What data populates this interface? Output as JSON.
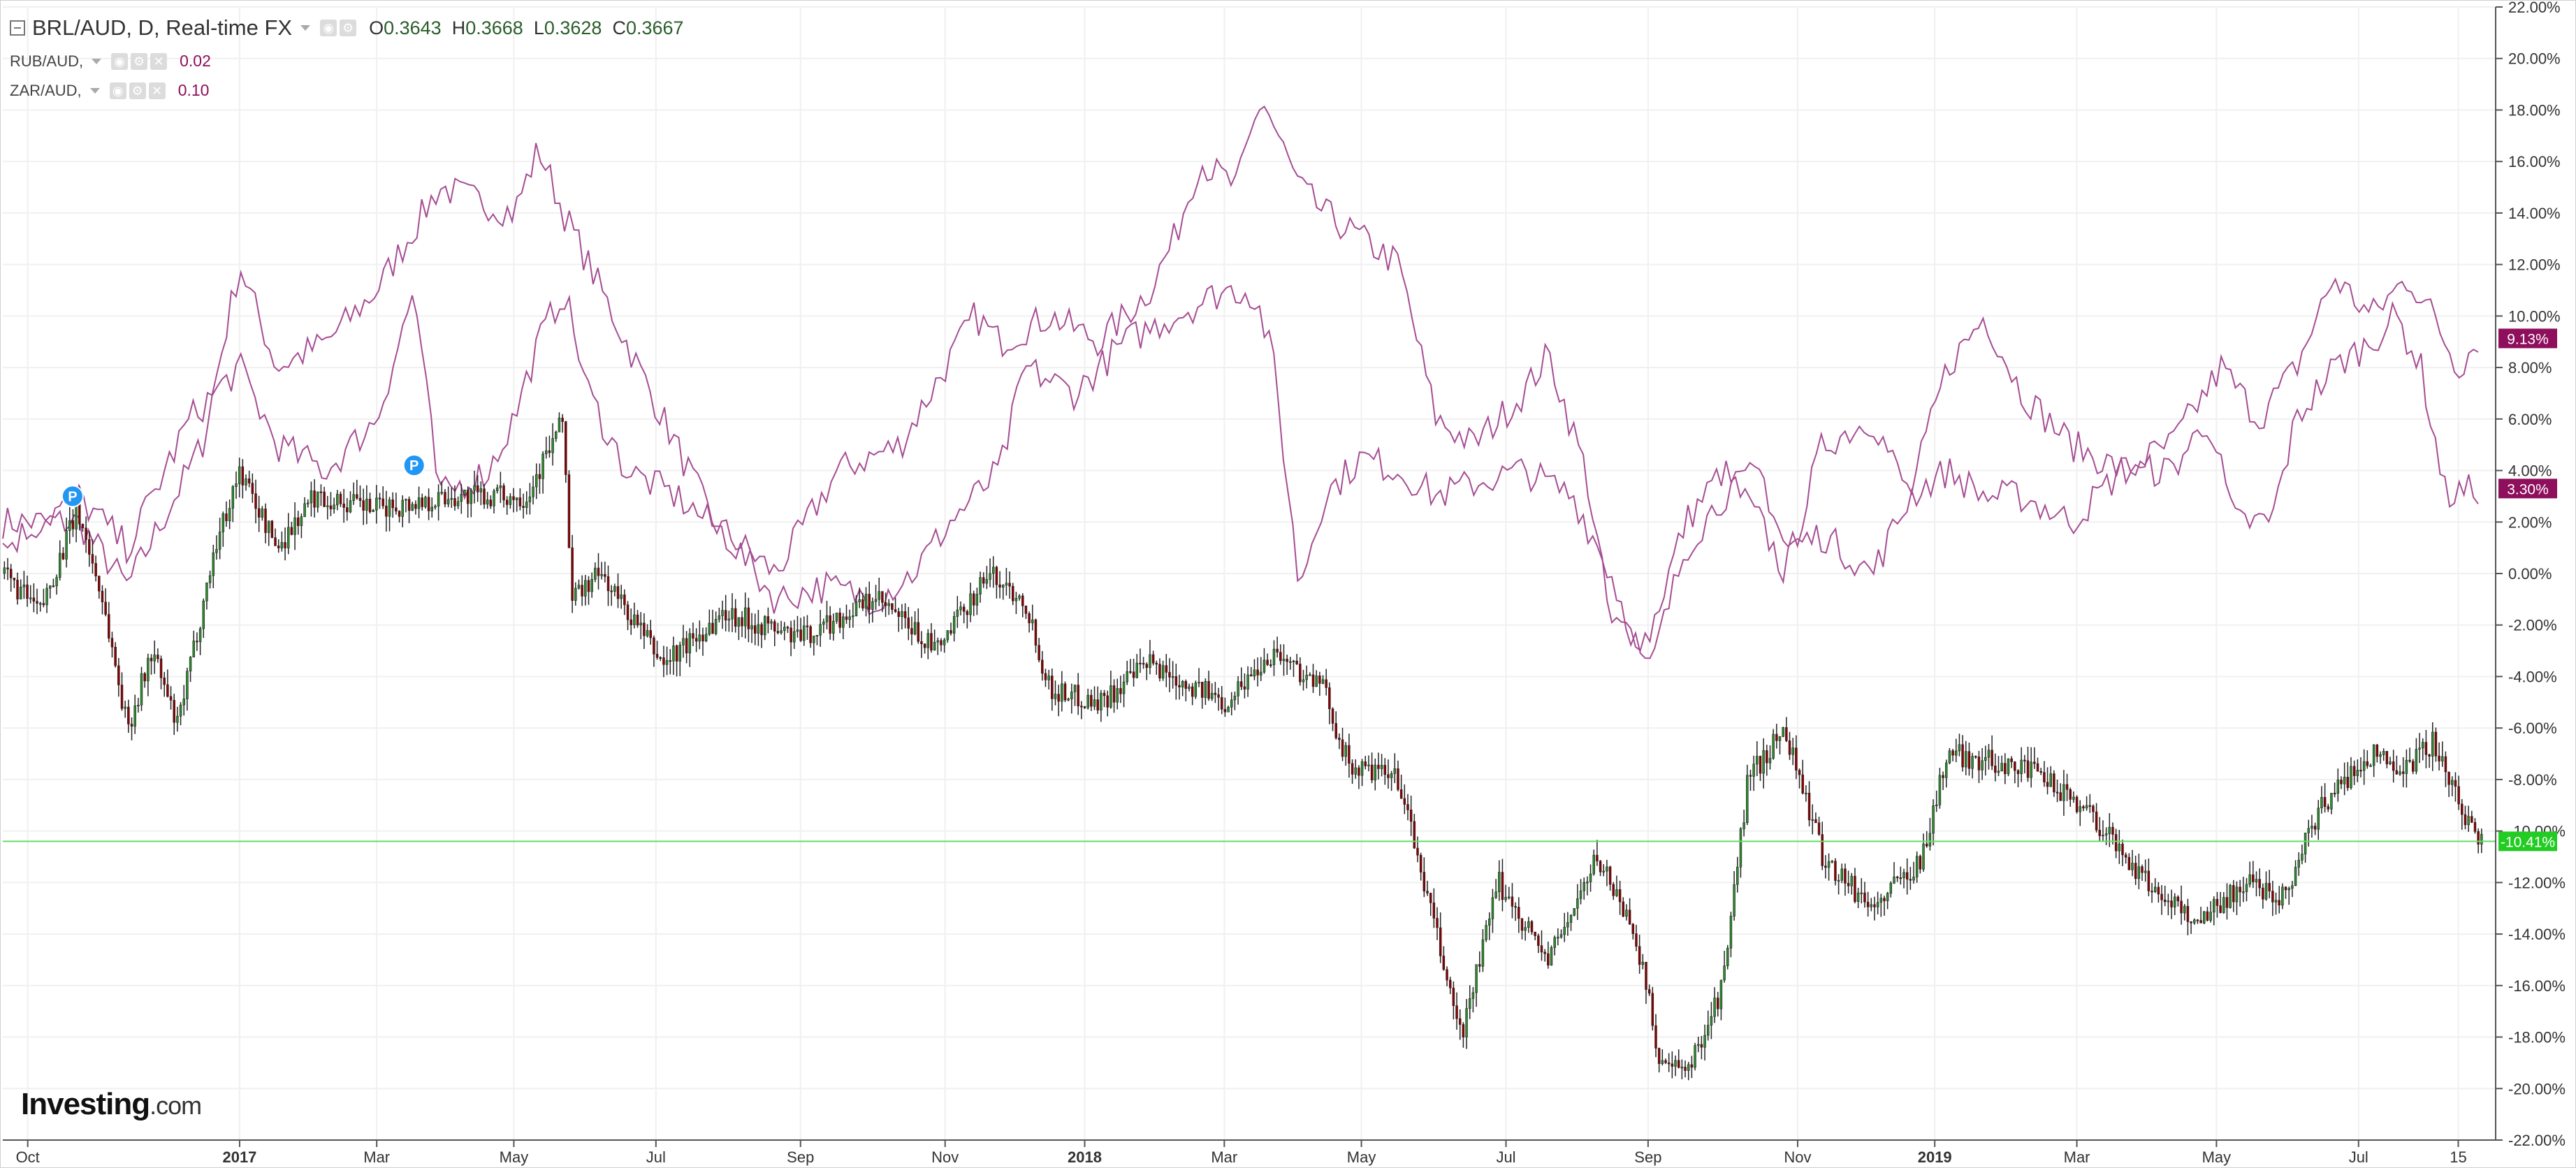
{
  "header": {
    "symbol_title": "BRL/AUD, D, Real-time FX",
    "ohlc": {
      "o_label": "O",
      "o": "0.3643",
      "h_label": "H",
      "h": "0.3668",
      "l_label": "L",
      "l": "0.3628",
      "c_label": "C",
      "c": "0.3667"
    },
    "compare": [
      {
        "name": "RUB/AUD,",
        "value": "0.02"
      },
      {
        "name": "ZAR/AUD,",
        "value": "0.10"
      }
    ]
  },
  "logo": {
    "brand": "Investing",
    "suffix": ".com"
  },
  "colors": {
    "up": "#2e8b2e",
    "down": "#8b0000",
    "compare_line": "#a64d93",
    "badge": "#8e0f5c",
    "last_line": "#66dd66",
    "last_badge": "#22cc22"
  },
  "chart_data": {
    "type": "candlestick",
    "title": "BRL/AUD, D, Real-time FX",
    "ylabel": "%",
    "ylim": [
      -22,
      22
    ],
    "y_ticks": [
      "22.00%",
      "20.00%",
      "18.00%",
      "16.00%",
      "14.00%",
      "12.00%",
      "10.00%",
      "8.00%",
      "6.00%",
      "4.00%",
      "2.00%",
      "0.00%",
      "-2.00%",
      "-4.00%",
      "-6.00%",
      "-8.00%",
      "-10.00%",
      "-12.00%",
      "-14.00%",
      "-16.00%",
      "-18.00%",
      "-20.00%",
      "-22.00%"
    ],
    "x_ticks": [
      {
        "label": "Oct",
        "t": 0.01,
        "bold": false
      },
      {
        "label": "2017",
        "t": 0.095,
        "bold": true
      },
      {
        "label": "Mar",
        "t": 0.15,
        "bold": false
      },
      {
        "label": "May",
        "t": 0.205,
        "bold": false
      },
      {
        "label": "Jul",
        "t": 0.262,
        "bold": false
      },
      {
        "label": "Sep",
        "t": 0.32,
        "bold": false
      },
      {
        "label": "Nov",
        "t": 0.378,
        "bold": false
      },
      {
        "label": "2018",
        "t": 0.434,
        "bold": true
      },
      {
        "label": "Mar",
        "t": 0.49,
        "bold": false
      },
      {
        "label": "May",
        "t": 0.545,
        "bold": false
      },
      {
        "label": "Jul",
        "t": 0.603,
        "bold": false
      },
      {
        "label": "Sep",
        "t": 0.66,
        "bold": false
      },
      {
        "label": "Nov",
        "t": 0.72,
        "bold": false
      },
      {
        "label": "2019",
        "t": 0.775,
        "bold": true
      },
      {
        "label": "Mar",
        "t": 0.832,
        "bold": false
      },
      {
        "label": "May",
        "t": 0.888,
        "bold": false
      },
      {
        "label": "Jul",
        "t": 0.945,
        "bold": false
      },
      {
        "label": "15",
        "t": 0.985,
        "bold": false
      }
    ],
    "main_series": {
      "name": "BRL/AUD",
      "knots": [
        [
          0,
          0
        ],
        [
          0.015,
          -1.5
        ],
        [
          0.03,
          2.5
        ],
        [
          0.04,
          -1
        ],
        [
          0.05,
          -6
        ],
        [
          0.06,
          -3
        ],
        [
          0.07,
          -6
        ],
        [
          0.085,
          1
        ],
        [
          0.095,
          4
        ],
        [
          0.11,
          1
        ],
        [
          0.125,
          3
        ],
        [
          0.15,
          2.5
        ],
        [
          0.18,
          3
        ],
        [
          0.21,
          3
        ],
        [
          0.225,
          6
        ],
        [
          0.228,
          -1
        ],
        [
          0.24,
          0
        ],
        [
          0.265,
          -3.5
        ],
        [
          0.29,
          -1.5
        ],
        [
          0.32,
          -2.5
        ],
        [
          0.35,
          -1
        ],
        [
          0.375,
          -3
        ],
        [
          0.395,
          0
        ],
        [
          0.41,
          -1
        ],
        [
          0.42,
          -4.5
        ],
        [
          0.44,
          -5
        ],
        [
          0.46,
          -3.5
        ],
        [
          0.49,
          -5
        ],
        [
          0.51,
          -3
        ],
        [
          0.53,
          -4.5
        ],
        [
          0.54,
          -7.5
        ],
        [
          0.56,
          -8
        ],
        [
          0.575,
          -14
        ],
        [
          0.585,
          -18
        ],
        [
          0.6,
          -12
        ],
        [
          0.62,
          -15
        ],
        [
          0.64,
          -11
        ],
        [
          0.655,
          -14
        ],
        [
          0.665,
          -19
        ],
        [
          0.675,
          -19.5
        ],
        [
          0.69,
          -16
        ],
        [
          0.7,
          -8
        ],
        [
          0.715,
          -6
        ],
        [
          0.73,
          -11
        ],
        [
          0.75,
          -13
        ],
        [
          0.77,
          -11
        ],
        [
          0.78,
          -7
        ],
        [
          0.81,
          -7.5
        ],
        [
          0.835,
          -9
        ],
        [
          0.86,
          -12
        ],
        [
          0.88,
          -13.5
        ],
        [
          0.9,
          -12
        ],
        [
          0.915,
          -12.5
        ],
        [
          0.93,
          -9
        ],
        [
          0.95,
          -7
        ],
        [
          0.965,
          -7.5
        ],
        [
          0.975,
          -6.5
        ],
        [
          0.985,
          -9
        ],
        [
          0.995,
          -10.4
        ]
      ],
      "last_value_label": "-10.41%"
    },
    "compare_series": [
      {
        "name": "RUB/AUD",
        "knots": [
          [
            0,
            2
          ],
          [
            0.03,
            2
          ],
          [
            0.05,
            -0.5
          ],
          [
            0.08,
            5
          ],
          [
            0.095,
            12
          ],
          [
            0.11,
            8
          ],
          [
            0.13,
            9
          ],
          [
            0.15,
            11
          ],
          [
            0.175,
            15
          ],
          [
            0.205,
            14
          ],
          [
            0.215,
            16.5
          ],
          [
            0.225,
            14
          ],
          [
            0.24,
            11
          ],
          [
            0.265,
            6
          ],
          [
            0.285,
            2
          ],
          [
            0.31,
            0
          ],
          [
            0.335,
            4
          ],
          [
            0.36,
            5
          ],
          [
            0.375,
            7.5
          ],
          [
            0.39,
            10
          ],
          [
            0.4,
            9
          ],
          [
            0.42,
            10
          ],
          [
            0.44,
            9
          ],
          [
            0.46,
            11
          ],
          [
            0.47,
            13
          ],
          [
            0.48,
            16
          ],
          [
            0.495,
            15
          ],
          [
            0.505,
            18.5
          ],
          [
            0.52,
            15
          ],
          [
            0.53,
            14
          ],
          [
            0.545,
            13
          ],
          [
            0.56,
            12
          ],
          [
            0.575,
            6
          ],
          [
            0.59,
            5
          ],
          [
            0.61,
            7
          ],
          [
            0.62,
            8.5
          ],
          [
            0.635,
            4
          ],
          [
            0.645,
            -2
          ],
          [
            0.66,
            -2.5
          ],
          [
            0.675,
            2
          ],
          [
            0.69,
            4
          ],
          [
            0.705,
            2
          ],
          [
            0.715,
            0
          ],
          [
            0.73,
            5
          ],
          [
            0.75,
            6
          ],
          [
            0.765,
            3
          ],
          [
            0.78,
            8
          ],
          [
            0.795,
            10
          ],
          [
            0.81,
            7
          ],
          [
            0.83,
            5
          ],
          [
            0.85,
            4
          ],
          [
            0.87,
            5
          ],
          [
            0.89,
            8
          ],
          [
            0.905,
            6
          ],
          [
            0.92,
            8
          ],
          [
            0.935,
            11.5
          ],
          [
            0.95,
            10
          ],
          [
            0.965,
            11.5
          ],
          [
            0.975,
            10
          ],
          [
            0.985,
            8
          ],
          [
            0.993,
            9.13
          ]
        ],
        "last_value_label": "9.13%"
      },
      {
        "name": "ZAR/AUD",
        "knots": [
          [
            0,
            1
          ],
          [
            0.03,
            3
          ],
          [
            0.05,
            1
          ],
          [
            0.075,
            6
          ],
          [
            0.095,
            8
          ],
          [
            0.11,
            5
          ],
          [
            0.13,
            4
          ],
          [
            0.15,
            6
          ],
          [
            0.165,
            11
          ],
          [
            0.175,
            3
          ],
          [
            0.195,
            4
          ],
          [
            0.205,
            6
          ],
          [
            0.215,
            9
          ],
          [
            0.225,
            11
          ],
          [
            0.235,
            7
          ],
          [
            0.25,
            4
          ],
          [
            0.27,
            3
          ],
          [
            0.29,
            1.5
          ],
          [
            0.31,
            -1
          ],
          [
            0.33,
            -0.5
          ],
          [
            0.35,
            -1
          ],
          [
            0.365,
            0
          ],
          [
            0.38,
            2
          ],
          [
            0.39,
            3
          ],
          [
            0.4,
            4
          ],
          [
            0.41,
            8
          ],
          [
            0.43,
            7
          ],
          [
            0.45,
            9
          ],
          [
            0.47,
            10
          ],
          [
            0.49,
            11
          ],
          [
            0.5,
            11
          ],
          [
            0.505,
            10
          ],
          [
            0.51,
            8
          ],
          [
            0.52,
            -0.5
          ],
          [
            0.53,
            3
          ],
          [
            0.545,
            4.5
          ],
          [
            0.56,
            4
          ],
          [
            0.575,
            3
          ],
          [
            0.59,
            3.5
          ],
          [
            0.61,
            4
          ],
          [
            0.63,
            3
          ],
          [
            0.645,
            0
          ],
          [
            0.66,
            -4
          ],
          [
            0.675,
            1
          ],
          [
            0.69,
            3
          ],
          [
            0.705,
            4
          ],
          [
            0.715,
            1
          ],
          [
            0.73,
            1.5
          ],
          [
            0.75,
            0
          ],
          [
            0.765,
            3
          ],
          [
            0.78,
            4
          ],
          [
            0.795,
            3
          ],
          [
            0.81,
            3
          ],
          [
            0.83,
            2
          ],
          [
            0.85,
            4
          ],
          [
            0.87,
            4
          ],
          [
            0.885,
            6
          ],
          [
            0.895,
            2
          ],
          [
            0.91,
            2
          ],
          [
            0.92,
            6
          ],
          [
            0.935,
            8
          ],
          [
            0.95,
            9
          ],
          [
            0.96,
            10
          ],
          [
            0.97,
            8
          ],
          [
            0.98,
            3
          ],
          [
            0.993,
            3.3
          ]
        ],
        "last_value_label": "3.30%"
      }
    ],
    "pins": [
      {
        "t": 0.028,
        "value": 3.0,
        "label": "P"
      },
      {
        "t": 0.165,
        "value": 4.2,
        "label": "P"
      }
    ],
    "grid": true,
    "legend": "top-left"
  }
}
